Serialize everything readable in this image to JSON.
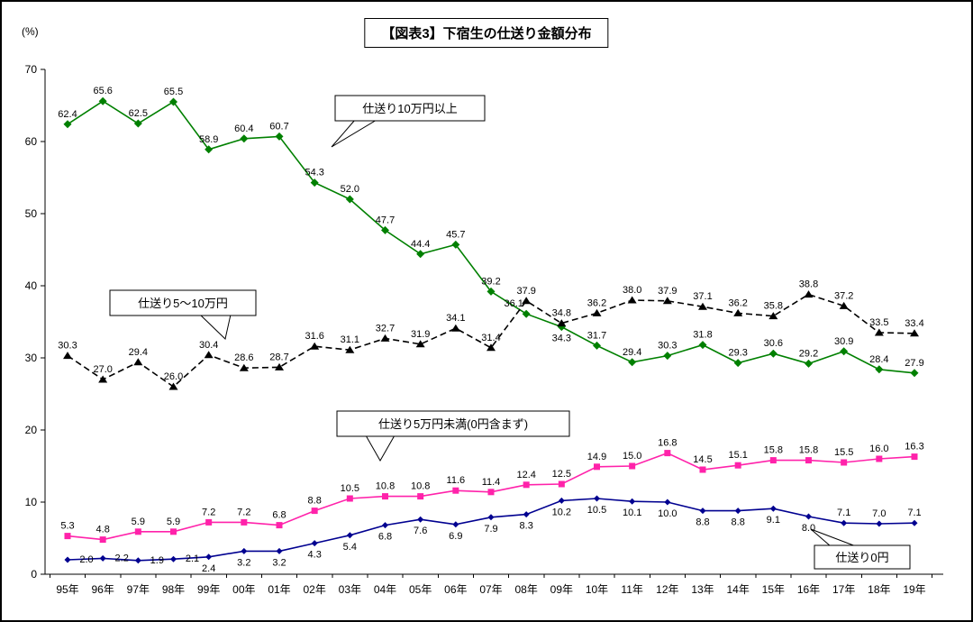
{
  "page": {
    "title": "【図表3】下宿生の仕送り金額分布",
    "y_unit": "(%)"
  },
  "chart_data": {
    "type": "line",
    "title": "【図表3】下宿生の仕送り金額分布",
    "xlabel": "",
    "ylabel": "(%)",
    "ylim": [
      0,
      70
    ],
    "yticks": [
      0,
      10,
      20,
      30,
      40,
      50,
      60,
      70
    ],
    "grid": false,
    "legend_position": "none",
    "categories": [
      "95年",
      "96年",
      "97年",
      "98年",
      "99年",
      "00年",
      "01年",
      "02年",
      "03年",
      "04年",
      "05年",
      "06年",
      "07年",
      "08年",
      "09年",
      "10年",
      "11年",
      "12年",
      "13年",
      "14年",
      "15年",
      "16年",
      "17年",
      "18年",
      "19年"
    ],
    "series": [
      {
        "name": "仕送り10万円以上",
        "color": "#008000",
        "marker": "diamond",
        "line_style": "solid",
        "values": [
          62.4,
          65.6,
          62.5,
          65.5,
          58.9,
          60.4,
          60.7,
          54.3,
          52.0,
          47.7,
          44.4,
          45.7,
          39.2,
          36.1,
          34.3,
          31.7,
          29.4,
          30.3,
          31.8,
          29.3,
          30.6,
          29.2,
          30.9,
          28.4,
          27.9
        ]
      },
      {
        "name": "仕送り5〜10万円",
        "color": "#000000",
        "marker": "triangle",
        "line_style": "dashed",
        "values": [
          30.3,
          27.0,
          29.4,
          26.0,
          30.4,
          28.6,
          28.7,
          31.6,
          31.1,
          32.7,
          31.9,
          34.1,
          31.4,
          37.9,
          34.8,
          36.2,
          38.0,
          37.9,
          37.1,
          36.2,
          35.8,
          38.8,
          37.2,
          33.5,
          33.4
        ]
      },
      {
        "name": "仕送り5万円未満(0円含まず)",
        "color": "#ff22aa",
        "marker": "square",
        "line_style": "solid",
        "values": [
          5.3,
          4.8,
          5.9,
          5.9,
          7.2,
          7.2,
          6.8,
          8.8,
          10.5,
          10.8,
          10.8,
          11.6,
          11.4,
          12.4,
          12.5,
          14.9,
          15.0,
          16.8,
          14.5,
          15.1,
          15.8,
          15.8,
          15.5,
          16.0,
          16.3
        ]
      },
      {
        "name": "仕送り0円",
        "color": "#000090",
        "marker": "diamond",
        "line_style": "solid",
        "values": [
          2.0,
          2.2,
          1.9,
          2.1,
          2.4,
          3.2,
          3.2,
          4.3,
          5.4,
          6.8,
          7.6,
          6.9,
          7.9,
          8.3,
          10.2,
          10.5,
          10.1,
          10.0,
          8.8,
          8.8,
          9.1,
          8.0,
          7.1,
          7.0,
          7.1
        ]
      }
    ],
    "annotations": [
      {
        "text": "仕送り10万円以上"
      },
      {
        "text": "仕送り5〜10万円"
      },
      {
        "text": "仕送り5万円未満(0円含まず)"
      },
      {
        "text": "仕送り0円"
      }
    ]
  }
}
